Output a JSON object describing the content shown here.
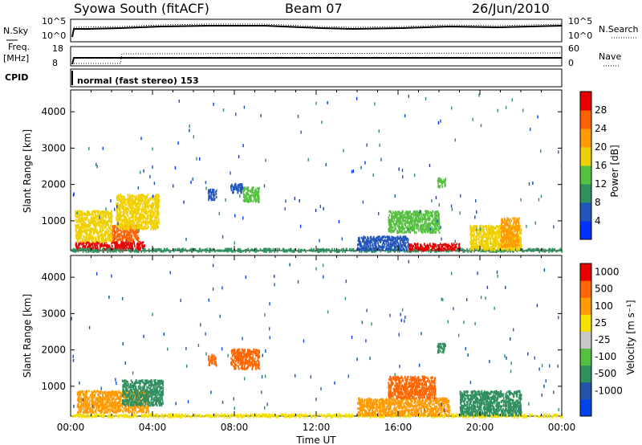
{
  "header": {
    "station": "Syowa South (fitACF)",
    "beam": "Beam 07",
    "date": "26/Jun/2010"
  },
  "strips": {
    "nsky_label": "N.Sky",
    "nsky_ticks": [
      "10^5",
      "10^0"
    ],
    "nsearch_label": "N.Search",
    "nsearch_ticks": [
      "10^5",
      "10^0"
    ],
    "freq_label": "Freq.",
    "freq_unit": "[MHz]",
    "freq_ticks": [
      "18",
      "8"
    ],
    "nave_label": "Nave",
    "nave_ticks": [
      "60",
      "0"
    ],
    "cpid_label": "CPID",
    "cpid_text": "normal (fast stereo) 153"
  },
  "chart_data": [
    {
      "type": "heatmap",
      "panel": "power",
      "ylabel": "Slant Range [km]",
      "ylim": [
        180,
        4600
      ],
      "yticks": [
        "1000",
        "2000",
        "3000",
        "4000"
      ],
      "ytick_values": [
        1000,
        2000,
        3000,
        4000
      ],
      "xlim": [
        0,
        24
      ],
      "colorbar": {
        "label": "Power [dB]",
        "ticks": [
          "4",
          "8",
          "12",
          "16",
          "20",
          "24",
          "28"
        ],
        "colors": [
          "#0033ff",
          "#2255bb",
          "#2f8f5f",
          "#55c040",
          "#f0d000",
          "#ff9a00",
          "#ff6000",
          "#e80000"
        ]
      },
      "regions": [
        {
          "t0": 0.2,
          "t1": 3.6,
          "r0": 220,
          "r1": 450,
          "level": 7
        },
        {
          "t0": 2.0,
          "t1": 3.3,
          "r0": 450,
          "r1": 900,
          "level": 6
        },
        {
          "t0": 0.2,
          "t1": 2.0,
          "r0": 450,
          "r1": 1300,
          "level": 4
        },
        {
          "t0": 2.2,
          "t1": 4.3,
          "r0": 800,
          "r1": 1750,
          "level": 4
        },
        {
          "t0": 0.0,
          "t1": 24.0,
          "r0": 180,
          "r1": 260,
          "level": 2
        },
        {
          "t0": 6.7,
          "t1": 7.1,
          "r0": 1600,
          "r1": 1900,
          "level": 1
        },
        {
          "t0": 7.8,
          "t1": 8.4,
          "r0": 1800,
          "r1": 2050,
          "level": 1
        },
        {
          "t0": 8.4,
          "t1": 9.2,
          "r0": 1550,
          "r1": 1950,
          "level": 3
        },
        {
          "t0": 14.0,
          "t1": 16.5,
          "r0": 220,
          "r1": 600,
          "level": 1
        },
        {
          "t0": 15.5,
          "t1": 18.0,
          "r0": 700,
          "r1": 1300,
          "level": 3
        },
        {
          "t0": 16.5,
          "t1": 19.0,
          "r0": 220,
          "r1": 400,
          "level": 7
        },
        {
          "t0": 17.9,
          "t1": 18.3,
          "r0": 1950,
          "r1": 2200,
          "level": 3
        },
        {
          "t0": 19.5,
          "t1": 22.0,
          "r0": 220,
          "r1": 900,
          "level": 4
        },
        {
          "t0": 21.0,
          "t1": 21.9,
          "r0": 300,
          "r1": 1100,
          "level": 5
        }
      ]
    },
    {
      "type": "heatmap",
      "panel": "velocity",
      "ylabel": "Slant Range [km]",
      "ylim": [
        180,
        4600
      ],
      "yticks": [
        "1000",
        "2000",
        "3000",
        "4000"
      ],
      "ytick_values": [
        1000,
        2000,
        3000,
        4000
      ],
      "xlim": [
        0,
        24
      ],
      "xlabel": "Time UT",
      "xticks": [
        "00:00",
        "04:00",
        "08:00",
        "12:00",
        "16:00",
        "20:00",
        "00:00"
      ],
      "xtick_values": [
        0,
        4,
        8,
        12,
        16,
        20,
        24
      ],
      "colorbar": {
        "label": "Velocity [m s⁻¹]",
        "ticks": [
          "1000",
          "500",
          "100",
          "25",
          "-25",
          "-100",
          "-500",
          "-1000"
        ],
        "colors": [
          "#0044ee",
          "#2255aa",
          "#2f8f5f",
          "#55c040",
          "#c8c8c8",
          "#f6e000",
          "#ff9a00",
          "#ff6600",
          "#e80000"
        ]
      },
      "regions": [
        {
          "t0": 0.3,
          "t1": 3.8,
          "r0": 300,
          "r1": 900,
          "level": 6
        },
        {
          "t0": 2.5,
          "t1": 4.5,
          "r0": 500,
          "r1": 1200,
          "level": 2
        },
        {
          "t0": 0.0,
          "t1": 24.0,
          "r0": 180,
          "r1": 260,
          "level": 5
        },
        {
          "t0": 6.7,
          "t1": 7.1,
          "r0": 1600,
          "r1": 1900,
          "level": 7
        },
        {
          "t0": 7.8,
          "t1": 9.2,
          "r0": 1500,
          "r1": 2050,
          "level": 7
        },
        {
          "t0": 14.0,
          "t1": 18.5,
          "r0": 220,
          "r1": 700,
          "level": 6
        },
        {
          "t0": 15.5,
          "t1": 17.8,
          "r0": 700,
          "r1": 1300,
          "level": 7
        },
        {
          "t0": 17.9,
          "t1": 18.3,
          "r0": 1950,
          "r1": 2200,
          "level": 2
        },
        {
          "t0": 19.0,
          "t1": 22.0,
          "r0": 220,
          "r1": 900,
          "level": 2
        }
      ]
    }
  ]
}
